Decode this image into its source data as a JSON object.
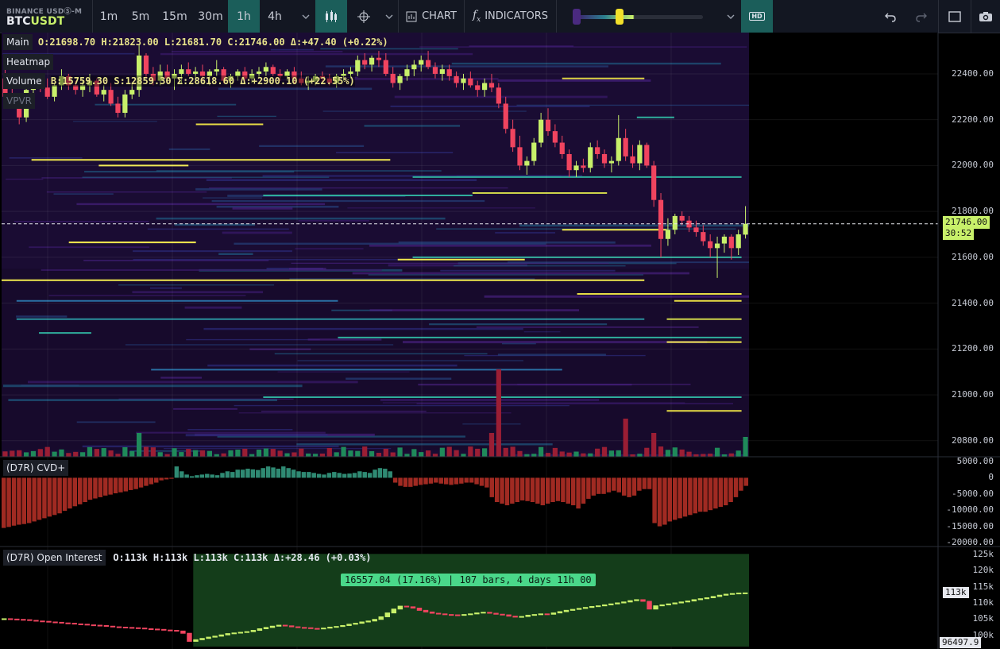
{
  "exchange": "BINANCE USDⓈ-M",
  "symbol_base": "BTC",
  "symbol_quote": "USDT",
  "timeframes": [
    "1m",
    "5m",
    "15m",
    "30m",
    "1h",
    "4h"
  ],
  "active_timeframe": "1h",
  "toolbar": {
    "chart_label": "CHART",
    "indicators_label": "INDICATORS",
    "hd_label": "HD"
  },
  "colors": {
    "up": "#c8f06a",
    "down": "#f0445f",
    "accent": "#1b5e5a",
    "bg": "#000000",
    "panel": "#131722"
  },
  "legend": {
    "main_label": "Main",
    "main_ohlc": "O:21698.70 H:21823.00 L:21681.70 C:21746.00 Δ:+47.40 (+0.22%)",
    "heatmap_label": "Heatmap",
    "volume_label": "Volume",
    "volume_stats": "B:15759.30 S:12859.30 Σ:28618.60 Δ:+2900.10 (+22.55%)",
    "vpvr_label": "VPVR"
  },
  "price_axis": [
    "22400.00",
    "22200.00",
    "22000.00",
    "21800.00",
    "21600.00",
    "21400.00",
    "21200.00",
    "21000.00",
    "20800.00"
  ],
  "current_price": "21746.00",
  "countdown": "30:52",
  "cvd": {
    "label": "(D7R) CVD+",
    "axis": [
      "5000.00",
      "0",
      "-5000.00",
      "-10000.00",
      "-15000.00",
      "-20000.00"
    ]
  },
  "open_interest": {
    "label": "(D7R) Open Interest",
    "stats": "O:113k H:113k L:113k C:113k Δ:+28.46 (+0.03%)",
    "axis": [
      "125k",
      "120k",
      "115k",
      "110k",
      "105k",
      "100k"
    ],
    "current": "113k",
    "bottom": "96497.9",
    "range_label": "16557.04 (17.16%) | 107 bars, 4 days 11h 00"
  },
  "chart_data": {
    "type": "candlestick",
    "price_ylim": [
      20730,
      22580
    ],
    "candles": [
      [
        22380,
        22420,
        22290,
        22300
      ],
      [
        22300,
        22340,
        22250,
        22270
      ],
      [
        22270,
        22300,
        22180,
        22210
      ],
      [
        22210,
        22360,
        22190,
        22330
      ],
      [
        22330,
        22380,
        22300,
        22350
      ],
      [
        22350,
        22390,
        22320,
        22340
      ],
      [
        22340,
        22380,
        22290,
        22300
      ],
      [
        22300,
        22360,
        22280,
        22350
      ],
      [
        22350,
        22420,
        22330,
        22390
      ],
      [
        22390,
        22400,
        22330,
        22350
      ],
      [
        22350,
        22370,
        22310,
        22330
      ],
      [
        22330,
        22370,
        22300,
        22350
      ],
      [
        22350,
        22400,
        22320,
        22370
      ],
      [
        22370,
        22380,
        22300,
        22310
      ],
      [
        22310,
        22350,
        22280,
        22330
      ],
      [
        22330,
        22360,
        22260,
        22270
      ],
      [
        22270,
        22300,
        22210,
        22230
      ],
      [
        22230,
        22330,
        22210,
        22310
      ],
      [
        22310,
        22360,
        22290,
        22330
      ],
      [
        22330,
        22530,
        22300,
        22480
      ],
      [
        22480,
        22490,
        22380,
        22400
      ],
      [
        22400,
        22430,
        22350,
        22370
      ],
      [
        22370,
        22440,
        22350,
        22410
      ],
      [
        22410,
        22440,
        22360,
        22380
      ],
      [
        22380,
        22420,
        22330,
        22400
      ],
      [
        22400,
        22440,
        22360,
        22420
      ],
      [
        22420,
        22450,
        22390,
        22400
      ],
      [
        22400,
        22430,
        22360,
        22410
      ],
      [
        22410,
        22440,
        22370,
        22390
      ],
      [
        22390,
        22420,
        22350,
        22410
      ],
      [
        22410,
        22460,
        22390,
        22420
      ],
      [
        22420,
        22430,
        22360,
        22370
      ],
      [
        22370,
        22400,
        22340,
        22390
      ],
      [
        22390,
        22420,
        22370,
        22410
      ],
      [
        22410,
        22430,
        22370,
        22380
      ],
      [
        22380,
        22420,
        22360,
        22400
      ],
      [
        22400,
        22430,
        22380,
        22410
      ],
      [
        22410,
        22450,
        22390,
        22430
      ],
      [
        22430,
        22440,
        22390,
        22400
      ],
      [
        22400,
        22420,
        22370,
        22390
      ],
      [
        22390,
        22420,
        22370,
        22410
      ],
      [
        22410,
        22430,
        22360,
        22380
      ],
      [
        22380,
        22410,
        22350,
        22360
      ],
      [
        22360,
        22390,
        22330,
        22370
      ],
      [
        22370,
        22400,
        22350,
        22390
      ],
      [
        22390,
        22410,
        22360,
        22380
      ],
      [
        22380,
        22400,
        22350,
        22360
      ],
      [
        22360,
        22400,
        22340,
        22390
      ],
      [
        22390,
        22420,
        22370,
        22400
      ],
      [
        22400,
        22430,
        22380,
        22410
      ],
      [
        22410,
        22480,
        22390,
        22460
      ],
      [
        22460,
        22490,
        22420,
        22440
      ],
      [
        22440,
        22480,
        22410,
        22470
      ],
      [
        22470,
        22500,
        22430,
        22460
      ],
      [
        22460,
        22490,
        22390,
        22400
      ],
      [
        22400,
        22430,
        22340,
        22360
      ],
      [
        22360,
        22400,
        22330,
        22390
      ],
      [
        22390,
        22440,
        22370,
        22420
      ],
      [
        22420,
        22460,
        22390,
        22440
      ],
      [
        22440,
        22480,
        22410,
        22460
      ],
      [
        22460,
        22500,
        22420,
        22430
      ],
      [
        22430,
        22450,
        22380,
        22400
      ],
      [
        22400,
        22440,
        22370,
        22420
      ],
      [
        22420,
        22440,
        22370,
        22390
      ],
      [
        22390,
        22410,
        22340,
        22360
      ],
      [
        22360,
        22400,
        22330,
        22380
      ],
      [
        22380,
        22410,
        22340,
        22350
      ],
      [
        22350,
        22370,
        22300,
        22330
      ],
      [
        22330,
        22380,
        22300,
        22360
      ],
      [
        22360,
        22400,
        22320,
        22340
      ],
      [
        22340,
        22360,
        22250,
        22270
      ],
      [
        22270,
        22300,
        22140,
        22160
      ],
      [
        22160,
        22200,
        22060,
        22080
      ],
      [
        22080,
        22130,
        21980,
        22000
      ],
      [
        22000,
        22040,
        21960,
        22020
      ],
      [
        22020,
        22120,
        22000,
        22100
      ],
      [
        22100,
        22230,
        22080,
        22200
      ],
      [
        22200,
        22250,
        22130,
        22150
      ],
      [
        22150,
        22180,
        22080,
        22100
      ],
      [
        22100,
        22130,
        22030,
        22050
      ],
      [
        22050,
        22070,
        21950,
        21980
      ],
      [
        21980,
        22020,
        21950,
        22000
      ],
      [
        22000,
        22030,
        21970,
        21990
      ],
      [
        21990,
        22100,
        21970,
        22080
      ],
      [
        22080,
        22110,
        22030,
        22050
      ],
      [
        22050,
        22070,
        21990,
        22010
      ],
      [
        22010,
        22040,
        21970,
        22020
      ],
      [
        22020,
        22220,
        22000,
        22120
      ],
      [
        22120,
        22160,
        22020,
        22040
      ],
      [
        22040,
        22090,
        21990,
        22010
      ],
      [
        22010,
        22110,
        21980,
        22090
      ],
      [
        22090,
        22100,
        21990,
        22000
      ],
      [
        22000,
        22020,
        21820,
        21850
      ],
      [
        21850,
        21880,
        21600,
        21680
      ],
      [
        21680,
        21770,
        21650,
        21720
      ],
      [
        21720,
        21790,
        21700,
        21780
      ],
      [
        21780,
        21800,
        21740,
        21760
      ],
      [
        21760,
        21780,
        21710,
        21730
      ],
      [
        21730,
        21760,
        21690,
        21710
      ],
      [
        21710,
        21740,
        21650,
        21670
      ],
      [
        21670,
        21700,
        21600,
        21640
      ],
      [
        21640,
        21690,
        21510,
        21660
      ],
      [
        21660,
        21700,
        21620,
        21690
      ],
      [
        21690,
        21700,
        21590,
        21640
      ],
      [
        21640,
        21720,
        21610,
        21700
      ],
      [
        21698.7,
        21823,
        21681.7,
        21746
      ]
    ],
    "volume_max": 28618.6,
    "heat_levels": [
      [
        21500,
        0,
        0.86,
        "#f2e94e"
      ],
      [
        21590,
        0.53,
        0.7,
        "#f2e94e"
      ],
      [
        22025,
        0.04,
        0.52,
        "#f2e94e"
      ],
      [
        22000,
        0.13,
        0.25,
        "#f2e94e"
      ],
      [
        21665,
        0.09,
        0.26,
        "#f2e94e"
      ],
      [
        22180,
        0.26,
        0.35,
        "#e8dd45"
      ],
      [
        21720,
        0.75,
        0.89,
        "#f2e94e"
      ],
      [
        21440,
        0.77,
        0.99,
        "#e8dd45"
      ],
      [
        21410,
        0.9,
        0.99,
        "#e8dd45"
      ],
      [
        21230,
        0.89,
        0.99,
        "#f2e94e"
      ],
      [
        21330,
        0.89,
        0.99,
        "#cdd34a"
      ],
      [
        20930,
        0.89,
        0.99,
        "#e6dc45"
      ],
      [
        22380,
        0.75,
        0.86,
        "#dcd244"
      ],
      [
        21880,
        0.63,
        0.81,
        "#cdd34a"
      ],
      [
        21870,
        0.35,
        0.63,
        "#2fae9c"
      ],
      [
        21950,
        0.55,
        0.99,
        "#2fae9c"
      ],
      [
        21250,
        0.45,
        0.99,
        "#2fae9c"
      ],
      [
        20990,
        0.35,
        0.99,
        "#2fae9c"
      ],
      [
        21330,
        0.02,
        0.86,
        "#2a8f9c"
      ],
      [
        21410,
        0.02,
        0.45,
        "#2a6fa3"
      ],
      [
        21110,
        0.2,
        0.75,
        "#2a6fa3"
      ],
      [
        21600,
        0.55,
        0.99,
        "#2fae9c"
      ],
      [
        21270,
        0.05,
        0.12,
        "#2fae9c"
      ],
      [
        22210,
        0.85,
        0.9,
        "#2fae9c"
      ]
    ],
    "cvd_ylim": [
      -21000,
      6000
    ],
    "cvd": [
      -15500,
      -15200,
      -14800,
      -14500,
      -14300,
      -14000,
      -13500,
      -13000,
      -12500,
      -12000,
      -11500,
      -11000,
      -10200,
      -9500,
      -8800,
      -8200,
      -7500,
      -6800,
      -6400,
      -6000,
      -5500,
      -5200,
      -4800,
      -4500,
      -4200,
      -3800,
      -3500,
      -3000,
      -2500,
      -2000,
      -1500,
      -800,
      -500,
      -300,
      3500,
      2000,
      1000,
      500,
      800,
      1000,
      1200,
      1000,
      800,
      1500,
      2000,
      1800,
      2500,
      2500,
      2800,
      2600,
      2400,
      3000,
      3500,
      3200,
      2800,
      3500,
      3000,
      2500,
      2000,
      1800,
      1800,
      1500,
      1200,
      1000,
      1500,
      1800,
      1500,
      1200,
      1300,
      1500,
      2000,
      1800,
      1500,
      2500,
      3000,
      2800,
      2000,
      -1500,
      -2500,
      -2800,
      -2800,
      -2500,
      -2200,
      -2000,
      -1800,
      -1500,
      -1800,
      -2000,
      -2200,
      -2000,
      -1800,
      -1500,
      -1500,
      -2000,
      -2500,
      -3000,
      -6000,
      -7500,
      -8000,
      -8500,
      -8000,
      -7500,
      -7000,
      -7200,
      -7500,
      -8000,
      -8500,
      -8000,
      -7500,
      -7200,
      -7500,
      -8000,
      -8500,
      -9500,
      -8000,
      -6500,
      -5500,
      -5000,
      -5000,
      -4500,
      -4000,
      -4500,
      -5500,
      -6000,
      -5500,
      -4000,
      -3500,
      -3500,
      -14000,
      -15000,
      -14500,
      -13500,
      -13000,
      -12500,
      -12000,
      -11500,
      -11000,
      -10500,
      -10500,
      -10000,
      -9500,
      -9000,
      -8500,
      -7500,
      -6000,
      -4000,
      -2500
    ],
    "oi_ylim": [
      96000,
      127000
    ],
    "oi": [
      105000,
      104900,
      104800,
      104700,
      104500,
      104300,
      104200,
      104000,
      103900,
      103700,
      103600,
      103400,
      103300,
      103100,
      103000,
      102900,
      102700,
      102500,
      102400,
      102300,
      102200,
      102100,
      101900,
      101800,
      101700,
      101500,
      101400,
      101200,
      100500,
      98000,
      98500,
      98900,
      99300,
      99600,
      100000,
      100400,
      100600,
      100800,
      101000,
      101400,
      101900,
      102300,
      102700,
      103000,
      102800,
      102500,
      102300,
      102200,
      102000,
      101900,
      102100,
      102400,
      102600,
      102900,
      103300,
      103600,
      104000,
      104300,
      104800,
      105600,
      106800,
      108000,
      108900,
      108700,
      108300,
      107600,
      107100,
      106700,
      106500,
      106300,
      106200,
      106100,
      106300,
      106500,
      106800,
      107000,
      106700,
      106400,
      106200,
      105800,
      105500,
      105700,
      106100,
      106300,
      106500,
      106400,
      106800,
      107200,
      107600,
      107900,
      108200,
      108500,
      108800,
      109000,
      109300,
      109600,
      109900,
      110200,
      110600,
      110900,
      110400,
      108000,
      109000,
      109300,
      109600,
      109900,
      110200,
      110500,
      110900,
      111200,
      111500,
      111900,
      112300,
      112600,
      112800,
      112950,
      113000
    ],
    "oi_range_start": 0.26
  }
}
